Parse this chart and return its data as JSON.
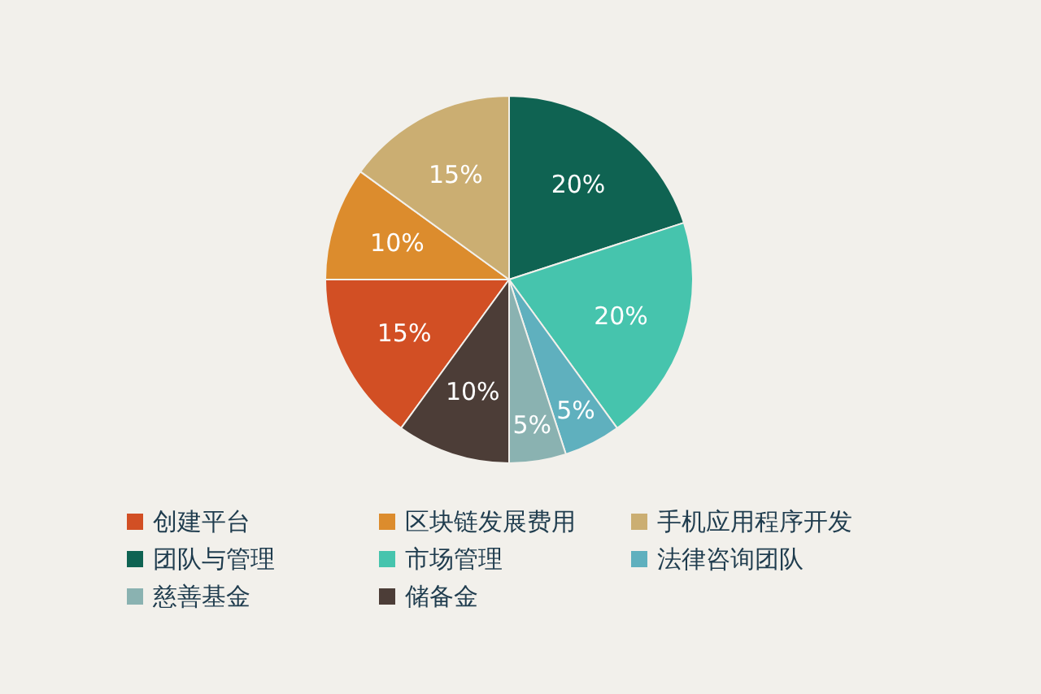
{
  "chart_data": {
    "type": "pie",
    "categories": [
      "创建平台",
      "区块链发展费用",
      "手机应用程序开发",
      "团队与管理",
      "市场管理",
      "法律咨询团队",
      "慈善基金",
      "储备金"
    ],
    "values": [
      15,
      10,
      15,
      20,
      20,
      5,
      5,
      10
    ],
    "colors": [
      "#d24f24",
      "#dc8c2d",
      "#cbae72",
      "#0f6352",
      "#46c4ad",
      "#5fb0be",
      "#8ab2b1",
      "#4c3d37"
    ],
    "value_labels": [
      "15%",
      "10%",
      "15%",
      "20%",
      "20%",
      "5%",
      "5%",
      "10%"
    ],
    "legend": "bottom"
  }
}
